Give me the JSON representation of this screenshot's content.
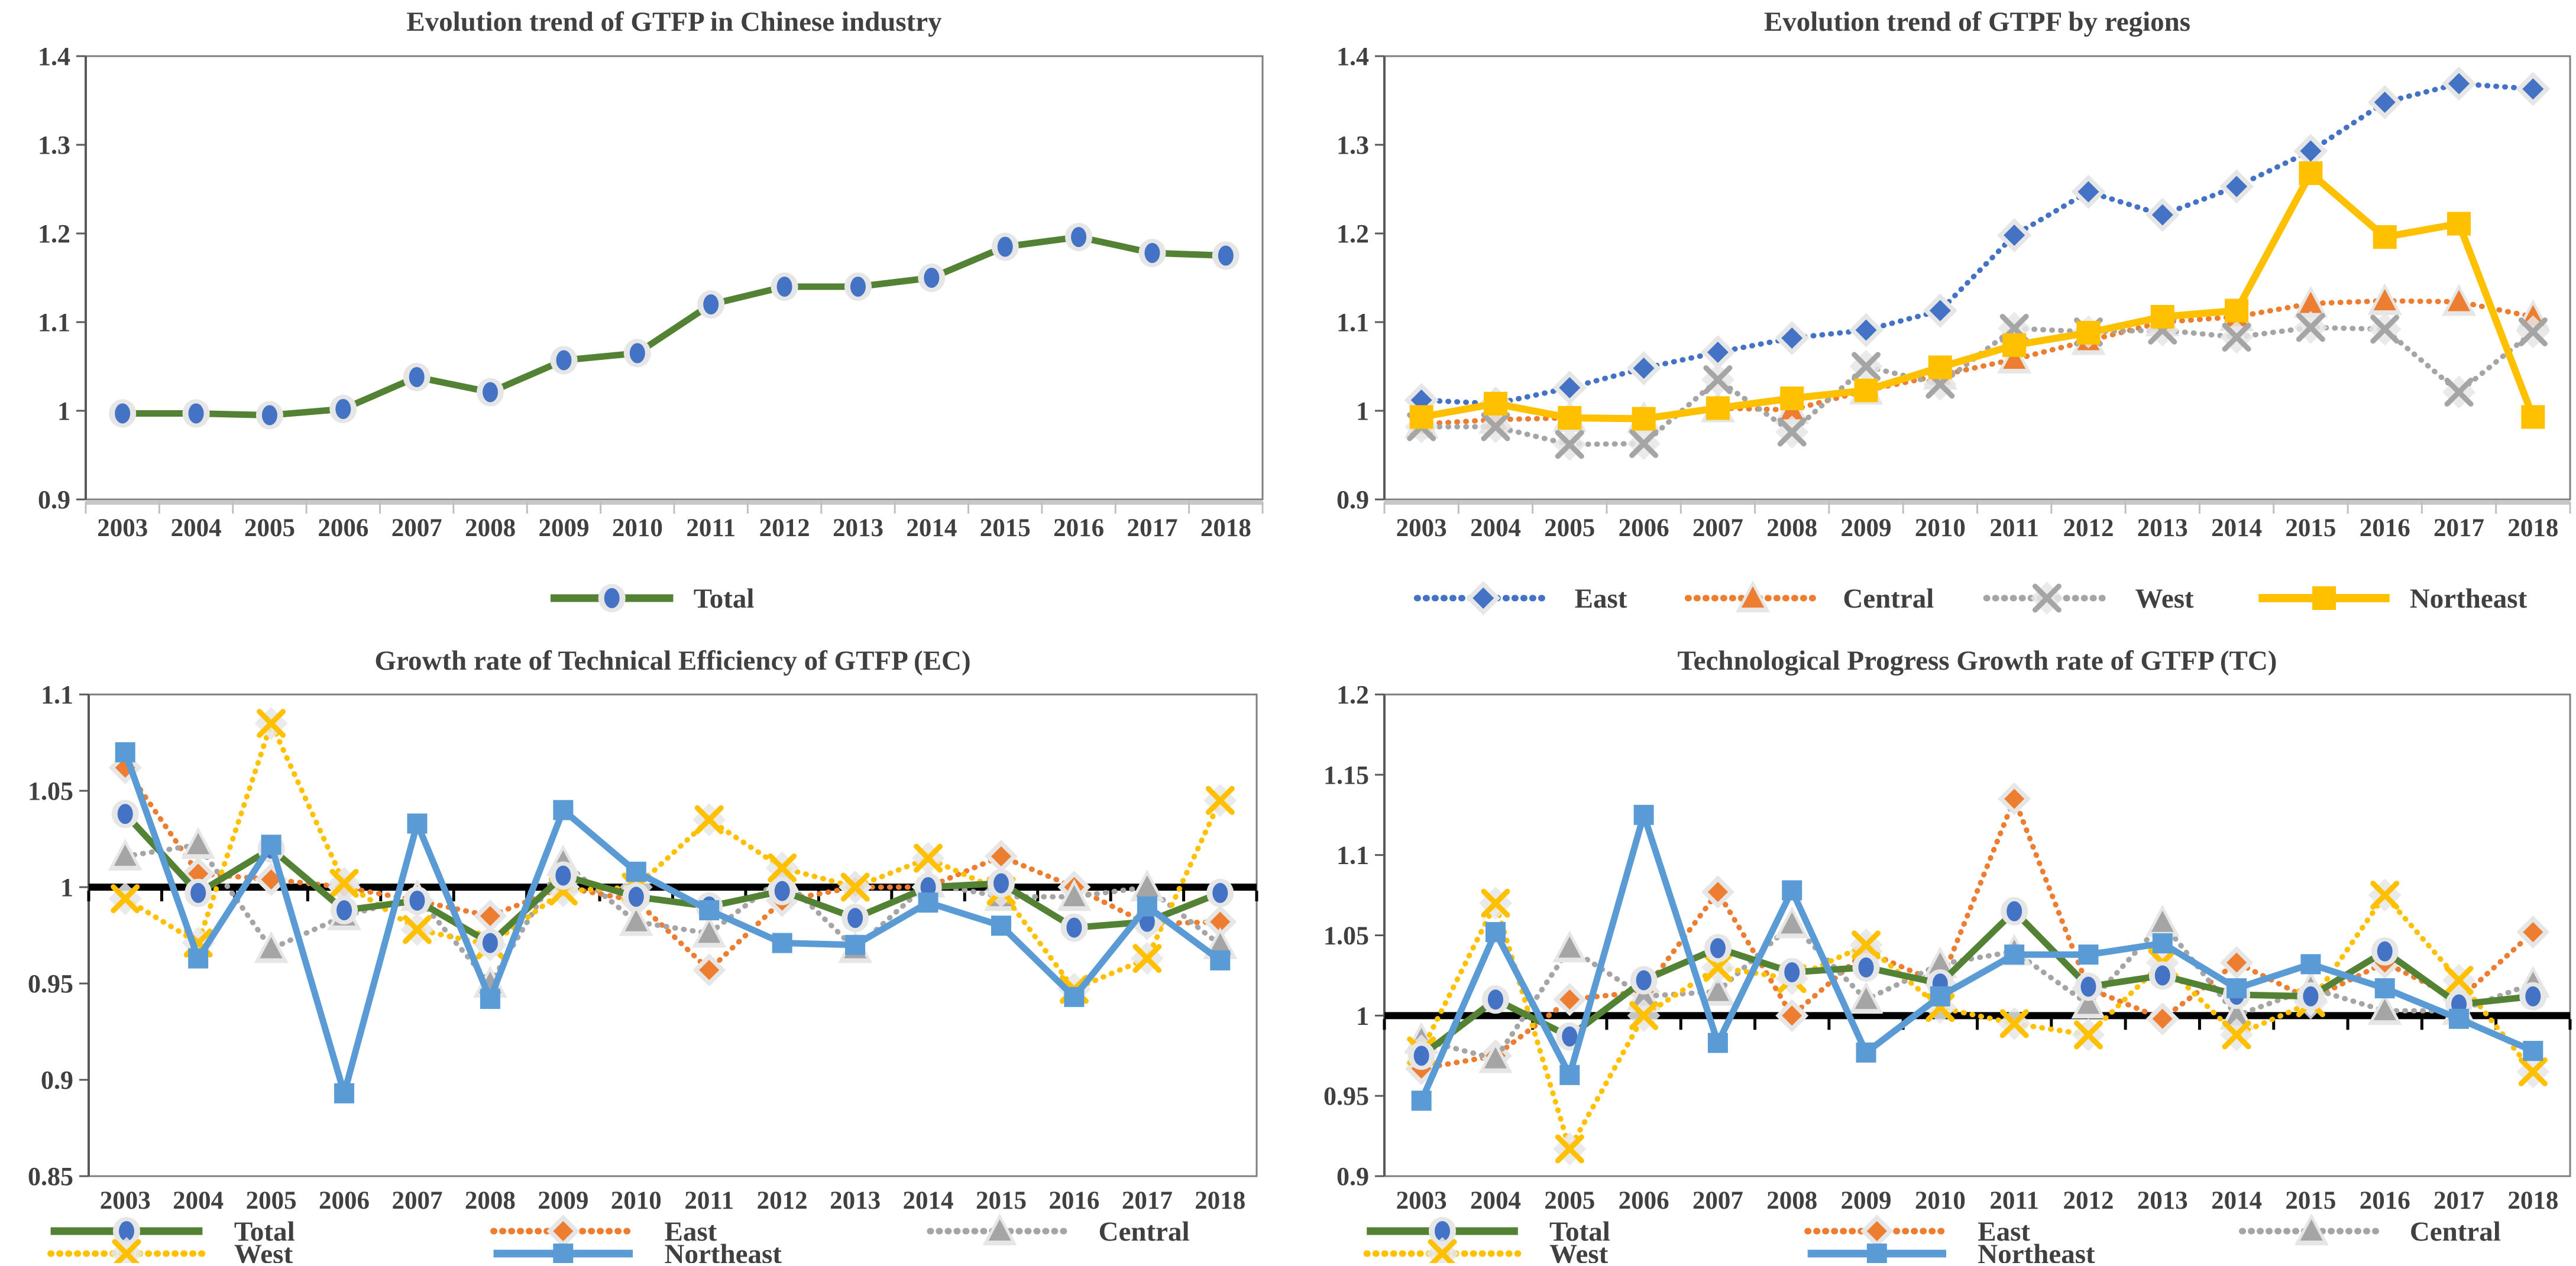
{
  "page": {
    "background": "#ffffff"
  },
  "colors": {
    "green": "#548235",
    "blue": "#4472C4",
    "orange": "#ED7D31",
    "gray": "#A5A5A5",
    "gold": "#FFC000",
    "lightblue": "#5B9BD5",
    "halo": "#E7E6E6",
    "axis_dark": "#595959",
    "axis_light": "#C8C8C8",
    "border": "#7F7F7F",
    "baseline": "#000000",
    "text": "#404040"
  },
  "chart_data": [
    {
      "id": "gtfp-total",
      "type": "line",
      "title": "Evolution trend of  GTFP in Chinese industry",
      "x": [
        "2003",
        "2004",
        "2005",
        "2006",
        "2007",
        "2008",
        "2009",
        "2010",
        "2011",
        "2012",
        "2013",
        "2014",
        "2015",
        "2016",
        "2017",
        "2018"
      ],
      "ylim": [
        0.9,
        1.4
      ],
      "yticks": [
        0.9,
        1.0,
        1.1,
        1.2,
        1.3,
        1.4
      ],
      "ytick_labels": [
        "0.9",
        "1",
        "1.1",
        "1.2",
        "1.3",
        "1.4"
      ],
      "axis_cross_y": null,
      "grid": false,
      "legend_position": "bottom",
      "series": [
        {
          "name": "Total",
          "color": "#548235",
          "line": "solid",
          "width": 11,
          "marker": {
            "type": "circle",
            "color": "#4472C4",
            "size": 16
          },
          "values": [
            0.997,
            0.997,
            0.995,
            1.002,
            1.038,
            1.021,
            1.057,
            1.065,
            1.12,
            1.14,
            1.14,
            1.15,
            1.185,
            1.196,
            1.178,
            1.175
          ]
        }
      ],
      "legend_rows": [
        [
          "Total"
        ]
      ]
    },
    {
      "id": "gtpf-regions",
      "type": "line",
      "title": "Evolution trend of GTPF by regions",
      "x": [
        "2003",
        "2004",
        "2005",
        "2006",
        "2007",
        "2008",
        "2009",
        "2010",
        "2011",
        "2012",
        "2013",
        "2014",
        "2015",
        "2016",
        "2017",
        "2018"
      ],
      "ylim": [
        0.9,
        1.4
      ],
      "yticks": [
        0.9,
        1.0,
        1.1,
        1.2,
        1.3,
        1.4
      ],
      "ytick_labels": [
        "0.9",
        "1",
        "1.1",
        "1.2",
        "1.3",
        "1.4"
      ],
      "axis_cross_y": null,
      "grid": false,
      "legend_position": "bottom",
      "series": [
        {
          "name": "East",
          "color": "#4472C4",
          "line": "dotted",
          "width": 9,
          "marker": {
            "type": "diamond",
            "color": "#4472C4",
            "size": 18
          },
          "values": [
            1.012,
            1.008,
            1.026,
            1.048,
            1.066,
            1.082,
            1.091,
            1.113,
            1.198,
            1.247,
            1.221,
            1.253,
            1.293,
            1.348,
            1.369,
            1.363
          ]
        },
        {
          "name": "Central",
          "color": "#ED7D31",
          "line": "dotted",
          "width": 9,
          "marker": {
            "type": "triangle",
            "color": "#ED7D31",
            "size": 20
          },
          "values": [
            0.985,
            0.99,
            0.992,
            0.991,
            1.003,
            1.001,
            1.023,
            1.04,
            1.058,
            1.079,
            1.1,
            1.106,
            1.121,
            1.124,
            1.123,
            1.106
          ]
        },
        {
          "name": "West",
          "color": "#A5A5A5",
          "line": "dotted",
          "width": 9,
          "marker": {
            "type": "x",
            "color": "#A5A5A5",
            "size": 20
          },
          "values": [
            0.982,
            0.982,
            0.962,
            0.963,
            1.035,
            0.976,
            1.05,
            1.03,
            1.093,
            1.089,
            1.091,
            1.083,
            1.094,
            1.092,
            1.021,
            1.089
          ]
        },
        {
          "name": "Northeast",
          "color": "#FFC000",
          "line": "solid",
          "width": 12,
          "marker": {
            "type": "square",
            "color": "#FFC000",
            "size": 40
          },
          "values": [
            0.993,
            1.008,
            0.992,
            0.991,
            1.003,
            1.014,
            1.023,
            1.049,
            1.074,
            1.088,
            1.106,
            1.113,
            1.268,
            1.196,
            1.211,
            0.993
          ]
        }
      ],
      "legend_rows": [
        [
          "East",
          "Central",
          "West",
          "Northeast"
        ]
      ]
    },
    {
      "id": "gtfp-ec",
      "type": "line",
      "title": "Growth rate of Technical Efficiency of GTFP (EC)",
      "x": [
        "2003",
        "2004",
        "2005",
        "2006",
        "2007",
        "2008",
        "2009",
        "2010",
        "2011",
        "2012",
        "2013",
        "2014",
        "2015",
        "2016",
        "2017",
        "2018"
      ],
      "ylim": [
        0.85,
        1.1
      ],
      "yticks": [
        0.85,
        0.9,
        0.95,
        1.0,
        1.05,
        1.1
      ],
      "ytick_labels": [
        "0.85",
        "0.9",
        "0.95",
        "1",
        "1.05",
        "1.1"
      ],
      "axis_cross_y": 1.0,
      "grid": false,
      "legend_position": "bottom",
      "series": [
        {
          "name": "East",
          "color": "#ED7D31",
          "line": "dotted",
          "width": 9,
          "marker": {
            "type": "diamond",
            "color": "#ED7D31",
            "size": 17
          },
          "values": [
            1.062,
            1.007,
            1.004,
            1.0,
            0.993,
            0.985,
            1.0,
            0.993,
            0.957,
            0.993,
            1.0,
            1.0,
            1.016,
            1.0,
            0.981,
            0.982
          ]
        },
        {
          "name": "Central",
          "color": "#A5A5A5",
          "line": "dotted",
          "width": 9,
          "marker": {
            "type": "triangle",
            "color": "#A5A5A5",
            "size": 20
          },
          "values": [
            1.016,
            1.022,
            0.968,
            0.985,
            0.995,
            0.95,
            1.013,
            0.982,
            0.976,
            1.005,
            0.968,
            1.002,
            0.995,
            0.995,
            1.0,
            0.97
          ]
        },
        {
          "name": "West",
          "color": "#FFC000",
          "line": "dotted",
          "width": 9,
          "marker": {
            "type": "x",
            "color": "#FFC000",
            "size": 20
          },
          "values": [
            0.994,
            0.971,
            1.085,
            1.002,
            0.978,
            0.97,
            0.998,
            1.0,
            1.035,
            1.01,
            1.0,
            1.015,
            0.998,
            0.947,
            0.963,
            1.045
          ]
        },
        {
          "name": "Total",
          "color": "#548235",
          "line": "solid",
          "width": 11,
          "marker": {
            "type": "circle",
            "color": "#4472C4",
            "size": 16
          },
          "values": [
            1.038,
            0.997,
            1.02,
            0.988,
            0.993,
            0.971,
            1.006,
            0.995,
            0.99,
            0.998,
            0.984,
            1.0,
            1.002,
            0.979,
            0.982,
            0.997
          ]
        },
        {
          "name": "Northeast",
          "color": "#5B9BD5",
          "line": "solid",
          "width": 11,
          "marker": {
            "type": "square",
            "color": "#5B9BD5",
            "size": 34
          },
          "values": [
            1.07,
            0.963,
            1.022,
            0.893,
            1.033,
            0.942,
            1.04,
            1.008,
            0.988,
            0.971,
            0.97,
            0.992,
            0.98,
            0.943,
            0.99,
            0.962
          ]
        }
      ],
      "legend_rows": [
        [
          "Total",
          "East",
          "Central"
        ],
        [
          "West",
          "Northeast"
        ]
      ]
    },
    {
      "id": "gtfp-tc",
      "type": "line",
      "title": "Technological Progress Growth rate of GTFP (TC)",
      "x": [
        "2003",
        "2004",
        "2005",
        "2006",
        "2007",
        "2008",
        "2009",
        "2010",
        "2011",
        "2012",
        "2013",
        "2014",
        "2015",
        "2016",
        "2017",
        "2018"
      ],
      "ylim": [
        0.9,
        1.2
      ],
      "yticks": [
        0.9,
        0.95,
        1.0,
        1.05,
        1.1,
        1.15,
        1.2
      ],
      "ytick_labels": [
        "0.9",
        "0.95",
        "1",
        "1.05",
        "1.1",
        "1.15",
        "1.2"
      ],
      "axis_cross_y": 1.0,
      "grid": false,
      "legend_position": "bottom",
      "series": [
        {
          "name": "East",
          "color": "#ED7D31",
          "line": "dotted",
          "width": 9,
          "marker": {
            "type": "diamond",
            "color": "#ED7D31",
            "size": 17
          },
          "values": [
            0.967,
            0.975,
            1.01,
            1.015,
            1.077,
            1.0,
            1.04,
            1.02,
            1.135,
            1.017,
            0.998,
            1.033,
            1.01,
            1.033,
            1.01,
            1.052
          ]
        },
        {
          "name": "Central",
          "color": "#A5A5A5",
          "line": "dotted",
          "width": 9,
          "marker": {
            "type": "triangle",
            "color": "#A5A5A5",
            "size": 20
          },
          "values": [
            0.985,
            0.973,
            1.042,
            1.012,
            1.015,
            1.057,
            1.01,
            1.032,
            1.04,
            1.007,
            1.058,
            1.0,
            1.017,
            1.003,
            1.003,
            1.02
          ]
        },
        {
          "name": "West",
          "color": "#FFC000",
          "line": "dotted",
          "width": 9,
          "marker": {
            "type": "x",
            "color": "#FFC000",
            "size": 20
          },
          "values": [
            0.978,
            1.07,
            0.917,
            1.0,
            1.03,
            1.023,
            1.044,
            1.005,
            0.995,
            0.988,
            1.033,
            0.988,
            1.008,
            1.075,
            1.022,
            0.965
          ]
        },
        {
          "name": "Total",
          "color": "#548235",
          "line": "solid",
          "width": 11,
          "marker": {
            "type": "circle",
            "color": "#4472C4",
            "size": 16
          },
          "values": [
            0.975,
            1.01,
            0.987,
            1.022,
            1.042,
            1.027,
            1.03,
            1.02,
            1.065,
            1.018,
            1.025,
            1.013,
            1.012,
            1.04,
            1.007,
            1.012
          ]
        },
        {
          "name": "Northeast",
          "color": "#5B9BD5",
          "line": "solid",
          "width": 11,
          "marker": {
            "type": "square",
            "color": "#5B9BD5",
            "size": 34
          },
          "values": [
            0.947,
            1.052,
            0.963,
            1.125,
            0.983,
            1.078,
            0.977,
            1.012,
            1.038,
            1.038,
            1.045,
            1.017,
            1.032,
            1.017,
            0.998,
            0.978
          ]
        }
      ],
      "legend_rows": [
        [
          "Total",
          "East",
          "Central"
        ],
        [
          "West",
          "Northeast"
        ]
      ]
    }
  ]
}
